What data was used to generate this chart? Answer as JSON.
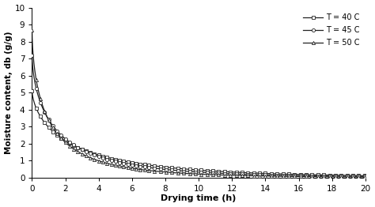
{
  "title": "",
  "xlabel": "Drying time (h)",
  "ylabel": "Moisture content, db (g/g)",
  "xlim": [
    0,
    20
  ],
  "ylim": [
    0,
    10
  ],
  "xticks": [
    0,
    2,
    4,
    6,
    8,
    10,
    12,
    14,
    16,
    18,
    20
  ],
  "yticks": [
    0,
    1,
    2,
    3,
    4,
    5,
    6,
    7,
    8,
    9,
    10
  ],
  "legend": [
    "T = 40 C",
    "T = 45 C",
    "T = 50 C"
  ],
  "markers": [
    "s",
    "o",
    "^"
  ],
  "line_color": "#222222",
  "series": [
    {
      "M0": 5.1,
      "k": 0.55,
      "n": 0.65
    },
    {
      "M0": 7.2,
      "k": 0.75,
      "n": 0.62
    },
    {
      "M0": 8.7,
      "k": 0.95,
      "n": 0.6
    }
  ],
  "marker_interval_early": 0.25,
  "marker_start_late": 7.0,
  "marker_interval_late": 0.35,
  "figsize": [
    4.74,
    2.62
  ],
  "dpi": 100
}
